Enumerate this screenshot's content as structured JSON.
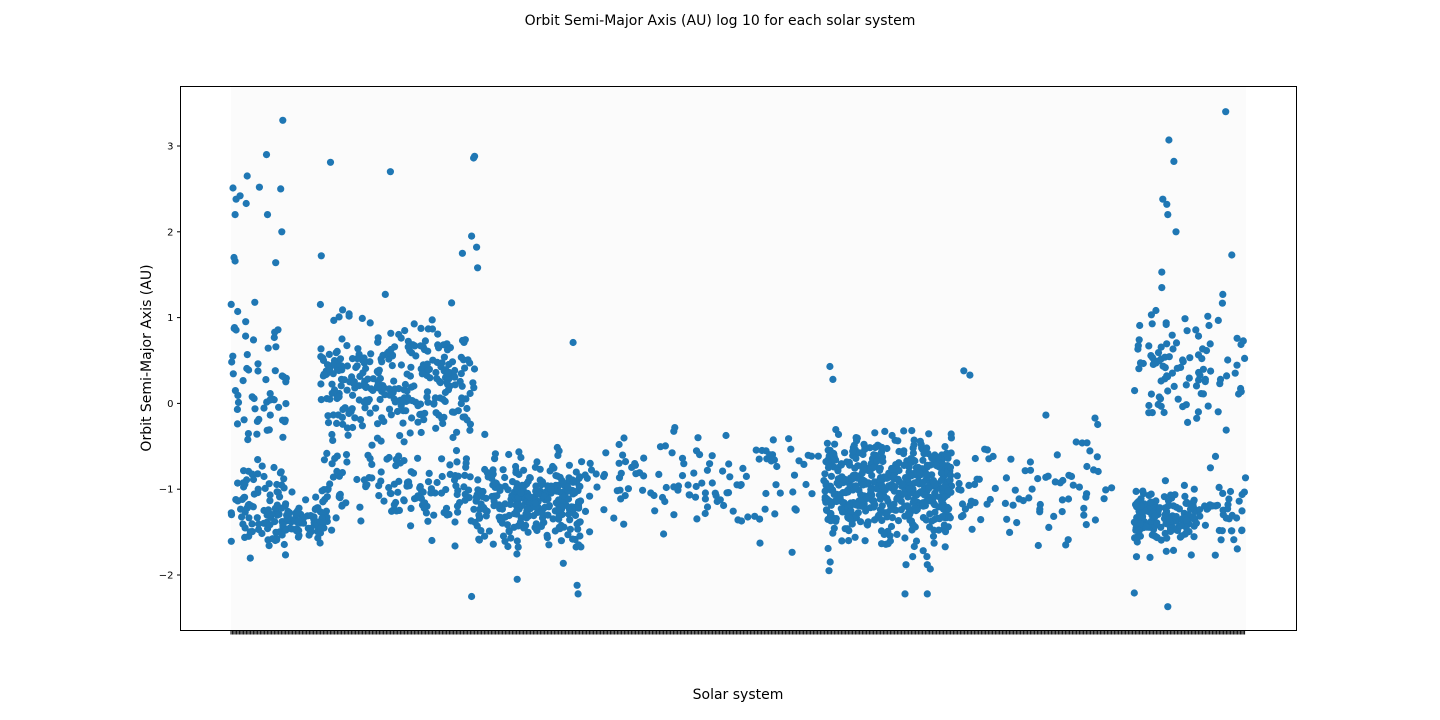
{
  "chart_data": {
    "type": "scatter",
    "title": "Orbit Semi-Major Axis (AU) log 10 for each solar system",
    "xlabel": "Solar system",
    "ylabel": "Orbit Semi-Major Axis (AU)",
    "ylim": [
      -2.65,
      3.7
    ],
    "y_ticks": [
      -2,
      -1,
      0,
      1,
      2,
      3
    ],
    "x_tick_labels": "dense (unreadable, one per solar system)",
    "grid": false,
    "legend": "none",
    "colors": {
      "marker": "#1f77b4",
      "plot_band": "#fbfbfb",
      "axes": "#000000"
    },
    "x_range": [
      0,
      1000
    ],
    "clusters": [
      {
        "x": [
          0,
          55
        ],
        "y_mean": -1.2,
        "y_sd": 0.25,
        "n": 90
      },
      {
        "x": [
          0,
          55
        ],
        "y_mean": 0.2,
        "y_sd": 0.45,
        "n": 60
      },
      {
        "x": [
          50,
          95
        ],
        "y_mean": -1.35,
        "y_sd": 0.12,
        "n": 80
      },
      {
        "x": [
          88,
          240
        ],
        "y_mean": 0.2,
        "y_sd": 0.35,
        "n": 300
      },
      {
        "x": [
          88,
          240
        ],
        "y_mean": -1.0,
        "y_sd": 0.25,
        "n": 130
      },
      {
        "x": [
          240,
          295
        ],
        "y_mean": -1.15,
        "y_sd": 0.25,
        "n": 120
      },
      {
        "x": [
          285,
          345
        ],
        "y_mean": -1.15,
        "y_sd": 0.25,
        "n": 170
      },
      {
        "x": [
          345,
          585
        ],
        "y_mean": -0.95,
        "y_sd": 0.3,
        "n": 130
      },
      {
        "x": [
          585,
          710
        ],
        "y_mean": -1.0,
        "y_sd": 0.3,
        "n": 520
      },
      {
        "x": [
          700,
          870
        ],
        "y_mean": -0.95,
        "y_sd": 0.3,
        "n": 90
      },
      {
        "x": [
          890,
          950
        ],
        "y_mean": -1.35,
        "y_sd": 0.18,
        "n": 170
      },
      {
        "x": [
          890,
          945
        ],
        "y_mean": 0.4,
        "y_sd": 0.35,
        "n": 60
      },
      {
        "x": [
          950,
          1000
        ],
        "y_mean": -1.25,
        "y_sd": 0.3,
        "n": 40
      },
      {
        "x": [
          950,
          1000
        ],
        "y_mean": 0.3,
        "y_sd": 0.4,
        "n": 40
      }
    ],
    "outliers": [
      {
        "x": 2,
        "y": 2.51
      },
      {
        "x": 4,
        "y": 2.2
      },
      {
        "x": 5,
        "y": 2.38
      },
      {
        "x": 9,
        "y": 2.42
      },
      {
        "x": 15,
        "y": 2.33
      },
      {
        "x": 16,
        "y": 2.65
      },
      {
        "x": 28,
        "y": 2.52
      },
      {
        "x": 35,
        "y": 2.9
      },
      {
        "x": 36,
        "y": 2.2
      },
      {
        "x": 44,
        "y": 1.64
      },
      {
        "x": 49,
        "y": 2.5
      },
      {
        "x": 50,
        "y": 2.0
      },
      {
        "x": 51,
        "y": 3.3
      },
      {
        "x": 3,
        "y": 1.7
      },
      {
        "x": 4,
        "y": 1.66
      },
      {
        "x": 89,
        "y": 1.72
      },
      {
        "x": 98,
        "y": 2.81
      },
      {
        "x": 157,
        "y": 2.7
      },
      {
        "x": 237,
        "y": 1.95
      },
      {
        "x": 239,
        "y": 2.86
      },
      {
        "x": 240,
        "y": 2.88
      },
      {
        "x": 242,
        "y": 1.82
      },
      {
        "x": 243,
        "y": 1.58
      },
      {
        "x": 228,
        "y": 1.75
      },
      {
        "x": 237,
        "y": -2.25
      },
      {
        "x": 282,
        "y": -2.05
      },
      {
        "x": 341,
        "y": -2.12
      },
      {
        "x": 342,
        "y": -2.22
      },
      {
        "x": 686,
        "y": -1.88
      },
      {
        "x": 664,
        "y": -2.22
      },
      {
        "x": 686,
        "y": -2.22
      },
      {
        "x": 689,
        "y": -1.93
      },
      {
        "x": 890,
        "y": -2.21
      },
      {
        "x": 923,
        "y": -2.37
      },
      {
        "x": 918,
        "y": 2.38
      },
      {
        "x": 922,
        "y": 2.32
      },
      {
        "x": 923,
        "y": 2.2
      },
      {
        "x": 924,
        "y": 3.07
      },
      {
        "x": 929,
        "y": 2.82
      },
      {
        "x": 931,
        "y": 2.0
      },
      {
        "x": 980,
        "y": 3.4
      },
      {
        "x": 986,
        "y": 1.73
      },
      {
        "x": 917,
        "y": 1.53
      },
      {
        "x": 917,
        "y": 1.35
      },
      {
        "x": 590,
        "y": 0.43
      },
      {
        "x": 593,
        "y": 0.28
      },
      {
        "x": 722,
        "y": 0.38
      },
      {
        "x": 728,
        "y": 0.33
      },
      {
        "x": 337,
        "y": 0.71
      },
      {
        "x": 152,
        "y": 1.27
      },
      {
        "x": 110,
        "y": 1.09
      }
    ]
  }
}
